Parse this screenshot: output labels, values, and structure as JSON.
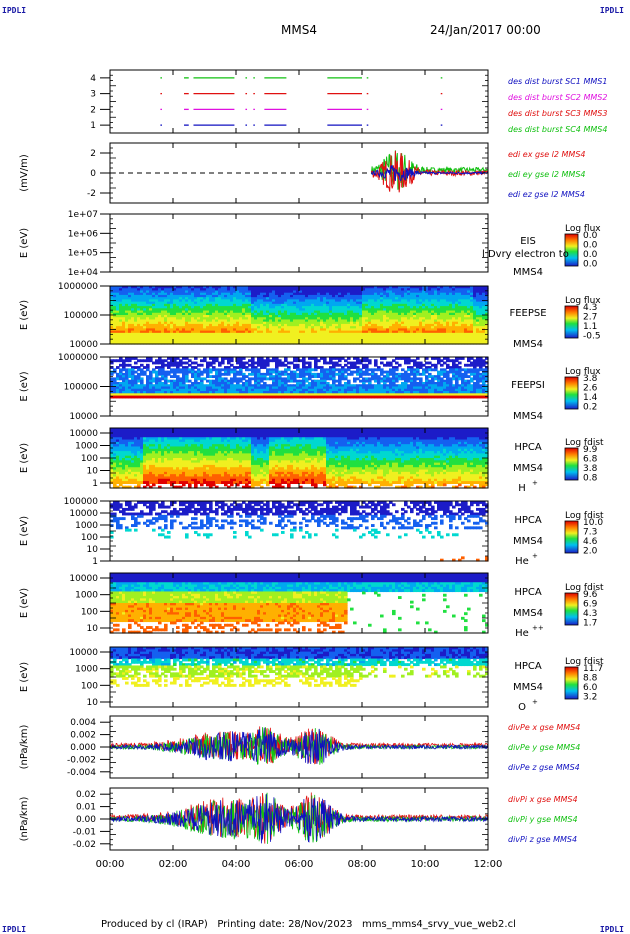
{
  "corners": {
    "tl": "IPDLI",
    "tr": "IPDLI",
    "bl": "IPDLI",
    "br": "IPDLI"
  },
  "header": {
    "spacecraft": "MMS4",
    "datetime": "24/Jan/2017 00:00"
  },
  "footer": {
    "text": "Produced by cl (IRAP)   Printing date: 28/Nov/2023   mms_mms4_srvy_vue_web2.cl"
  },
  "time_axis": {
    "ticks": [
      "00:00",
      "02:00",
      "04:00",
      "06:00",
      "08:00",
      "10:00",
      "12:00"
    ],
    "range_hours": [
      0,
      12
    ]
  },
  "chart_data": [
    {
      "type": "scatter",
      "id": "burst",
      "ylim": [
        0.5,
        4.5
      ],
      "yticks": [
        "1",
        "2",
        "3",
        "4"
      ],
      "legend": [
        {
          "text": "des dist burst SC1 MMS1",
          "color": "#1010c0"
        },
        {
          "text": "des dist burst SC2 MMS2",
          "color": "#e010e0"
        },
        {
          "text": "des dist burst SC3 MMS3",
          "color": "#e01010"
        },
        {
          "text": "des dist burst SC4 MMS4",
          "color": "#10c010"
        }
      ],
      "series": [
        {
          "level": 4,
          "color": "#10c010",
          "segments": [
            [
              1.6,
              1.65
            ],
            [
              2.35,
              2.5
            ],
            [
              2.65,
              3.95
            ],
            [
              4.3,
              4.35
            ],
            [
              4.55,
              4.6
            ],
            [
              4.9,
              5.6
            ],
            [
              6.9,
              8.0
            ],
            [
              8.15,
              8.2
            ],
            [
              10.5,
              10.55
            ]
          ]
        },
        {
          "level": 3,
          "color": "#e01010",
          "segments": [
            [
              1.6,
              1.65
            ],
            [
              2.35,
              2.5
            ],
            [
              2.65,
              3.95
            ],
            [
              4.3,
              4.35
            ],
            [
              4.55,
              4.6
            ],
            [
              4.9,
              5.6
            ],
            [
              6.9,
              8.0
            ],
            [
              8.15,
              8.2
            ],
            [
              10.5,
              10.55
            ]
          ]
        },
        {
          "level": 2,
          "color": "#e010e0",
          "segments": [
            [
              1.6,
              1.65
            ],
            [
              2.35,
              2.5
            ],
            [
              2.65,
              3.95
            ],
            [
              4.3,
              4.35
            ],
            [
              4.55,
              4.6
            ],
            [
              4.9,
              5.6
            ],
            [
              6.9,
              8.0
            ],
            [
              8.15,
              8.2
            ],
            [
              10.5,
              10.55
            ]
          ]
        },
        {
          "level": 1,
          "color": "#1010c0",
          "segments": [
            [
              1.6,
              1.65
            ],
            [
              2.35,
              2.5
            ],
            [
              2.65,
              3.95
            ],
            [
              4.3,
              4.35
            ],
            [
              4.55,
              4.6
            ],
            [
              4.9,
              5.6
            ],
            [
              6.9,
              8.0
            ],
            [
              8.15,
              8.2
            ],
            [
              10.5,
              10.55
            ]
          ]
        }
      ]
    },
    {
      "type": "line",
      "id": "edi",
      "ylabel": "(mV/m)",
      "ylim": [
        -3,
        3
      ],
      "yticks": [
        "-2",
        "0",
        "2"
      ],
      "zero_line": true,
      "start_hour": 8.3,
      "legend": [
        {
          "text": "edi ex gse l2 MMS4",
          "color": "#e01010"
        },
        {
          "text": "edi ey gse l2 MMS4",
          "color": "#10c010"
        },
        {
          "text": "edi ez gse l2 MMS4",
          "color": "#1010c0"
        }
      ]
    },
    {
      "type": "heatmap",
      "id": "eis",
      "ylabel": "E (eV)",
      "yticks": [
        "1e+07",
        "1e+06",
        "1e+05",
        "1e+04"
      ],
      "right_labels": [
        "EIS",
        "MMS4"
      ],
      "overlay_text": "l Dvry electron to",
      "colorbar": {
        "title": "Log flux",
        "values": [
          "0.0",
          "0.0",
          "0.0",
          "0.0"
        ]
      }
    },
    {
      "type": "heatmap",
      "id": "feepse",
      "ylabel": "E (eV)",
      "yticks": [
        "1000000",
        "100000",
        "10000"
      ],
      "right_labels": [
        "FEEPSE",
        "MMS4"
      ],
      "colorbar": {
        "title": "Log flux",
        "values": [
          "4.3",
          "2.7",
          "1.1",
          "-0.5"
        ]
      }
    },
    {
      "type": "heatmap",
      "id": "feepsi",
      "ylabel": "E (eV)",
      "yticks": [
        "1000000",
        "100000",
        "10000"
      ],
      "right_labels": [
        "FEEPSI",
        "MMS4"
      ],
      "colorbar": {
        "title": "Log flux",
        "values": [
          "3.8",
          "2.6",
          "1.4",
          "0.2"
        ]
      }
    },
    {
      "type": "heatmap",
      "id": "hpca_h",
      "ylabel": "E (eV)",
      "yticks": [
        "10000",
        "1000",
        "100",
        "10",
        "1"
      ],
      "right_labels": [
        "HPCA",
        "MMS4"
      ],
      "species": "H",
      "species_sup": "+",
      "colorbar": {
        "title": "Log fdist",
        "values": [
          "9.9",
          "6.8",
          "3.8",
          "0.8"
        ]
      }
    },
    {
      "type": "heatmap",
      "id": "hpca_he",
      "ylabel": "E (eV)",
      "yticks": [
        "100000",
        "10000",
        "1000",
        "100",
        "10",
        "1"
      ],
      "right_labels": [
        "HPCA",
        "MMS4"
      ],
      "species": "He",
      "species_sup": "+",
      "colorbar": {
        "title": "Log fdist",
        "values": [
          "10.0",
          "7.3",
          "4.6",
          "2.0"
        ]
      }
    },
    {
      "type": "heatmap",
      "id": "hpca_hepp",
      "ylabel": "E (eV)",
      "yticks": [
        "10000",
        "1000",
        "100",
        "10"
      ],
      "right_labels": [
        "HPCA",
        "MMS4"
      ],
      "species": "He",
      "species_sup": "++",
      "colorbar": {
        "title": "Log fdist",
        "values": [
          "9.6",
          "6.9",
          "4.3",
          "1.7"
        ]
      }
    },
    {
      "type": "heatmap",
      "id": "hpca_o",
      "ylabel": "E (eV)",
      "yticks": [
        "10000",
        "1000",
        "100",
        "10"
      ],
      "right_labels": [
        "HPCA",
        "MMS4"
      ],
      "species": "O",
      "species_sup": "+",
      "colorbar": {
        "title": "Log fdist",
        "values": [
          "11.7",
          "8.8",
          "6.0",
          "3.2"
        ]
      }
    },
    {
      "type": "line",
      "id": "divpe",
      "ylabel": "(nPa/km)",
      "ylim": [
        -0.005,
        0.005
      ],
      "yticks": [
        "0.004",
        "0.002",
        "0.000",
        "-0.002",
        "-0.004"
      ],
      "legend": [
        {
          "text": "divPe x gse MMS4",
          "color": "#e01010"
        },
        {
          "text": "divPe y gse MMS4",
          "color": "#10c010"
        },
        {
          "text": "divPe z gse MMS4",
          "color": "#1010c0"
        }
      ]
    },
    {
      "type": "line",
      "id": "divpi",
      "ylabel": "(nPa/km)",
      "ylim": [
        -0.025,
        0.025
      ],
      "yticks": [
        "0.02",
        "0.01",
        "0.00",
        "-0.01",
        "-0.02"
      ],
      "legend": [
        {
          "text": "divPi x gse MMS4",
          "color": "#e01010"
        },
        {
          "text": "divPi y gse MMS4",
          "color": "#10c010"
        },
        {
          "text": "divPi z gse MMS4",
          "color": "#1010c0"
        }
      ]
    }
  ]
}
